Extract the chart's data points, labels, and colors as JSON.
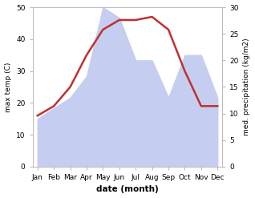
{
  "months": [
    "Jan",
    "Feb",
    "Mar",
    "Apr",
    "May",
    "Jun",
    "Jul",
    "Aug",
    "Sep",
    "Oct",
    "Nov",
    "Dec"
  ],
  "max_temp": [
    16,
    19,
    25,
    35,
    43,
    46,
    46,
    47,
    43,
    30,
    19,
    19
  ],
  "precipitation": [
    9,
    11,
    13,
    17,
    30,
    28,
    20,
    20,
    13,
    21,
    21,
    13
  ],
  "temp_color": "#c03030",
  "precip_fill_color": "#c5cef0",
  "ylabel_left": "max temp (C)",
  "ylabel_right": "med. precipitation (kg/m2)",
  "xlabel": "date (month)",
  "ylim_left": [
    0,
    50
  ],
  "ylim_right": [
    0,
    30
  ],
  "bg_color": "#ffffff",
  "line_width": 1.8
}
